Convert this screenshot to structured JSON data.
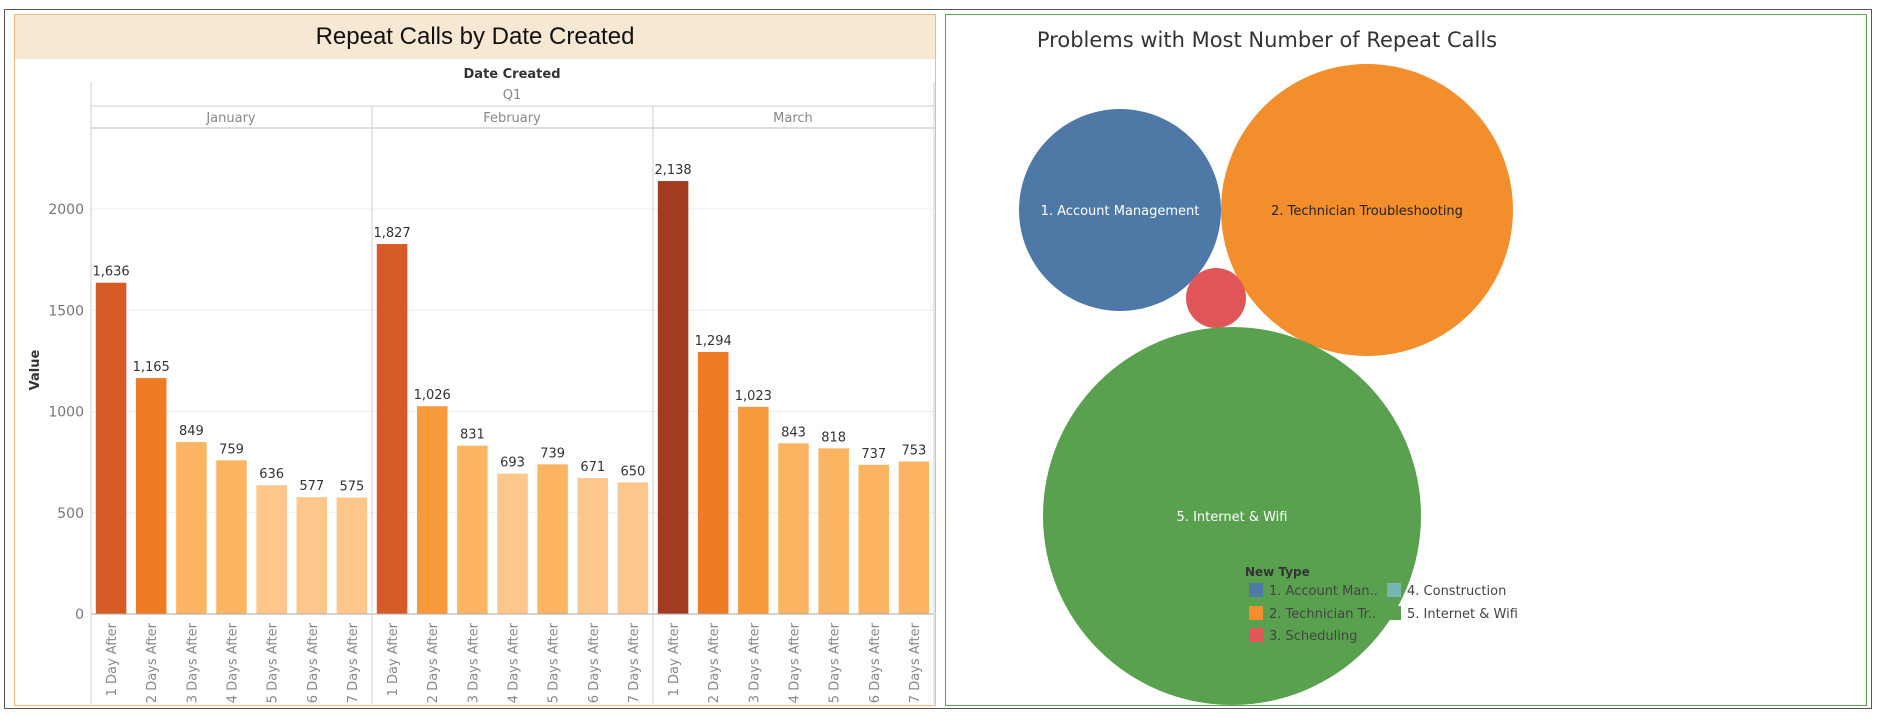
{
  "left": {
    "title": "Repeat Calls by Date Created",
    "column_header": "Date Created",
    "quarter": "Q1",
    "months": [
      "January",
      "February",
      "March"
    ]
  },
  "right": {
    "title": "Problems with Most Number of Repeat Calls"
  },
  "chart_data": [
    {
      "type": "bar",
      "title": "Repeat Calls by Date Created",
      "ylabel": "Value",
      "xlabel": "",
      "ylim": [
        0,
        2400
      ],
      "yticks": [
        0,
        500,
        1000,
        1500,
        2000
      ],
      "grid": true,
      "categories": [
        "1 Day After",
        "2 Days After",
        "3 Days After",
        "4 Days After",
        "5 Days After",
        "6 Days After",
        "7 Days After"
      ],
      "groups": [
        {
          "name": "January",
          "values": [
            1636,
            1165,
            849,
            759,
            636,
            577,
            575
          ]
        },
        {
          "name": "February",
          "values": [
            1827,
            1026,
            831,
            693,
            739,
            671,
            650
          ]
        },
        {
          "name": "March",
          "values": [
            2138,
            1294,
            1023,
            843,
            818,
            737,
            753
          ]
        }
      ],
      "value_labels": {
        "January": [
          "1,636",
          "1,165",
          "849",
          "759",
          "636",
          "577",
          "575"
        ],
        "February": [
          "1,827",
          "1,026",
          "831",
          "693",
          "739",
          "671",
          "650"
        ],
        "March": [
          "2,138",
          "1,294",
          "1,023",
          "843",
          "818",
          "737",
          "753"
        ]
      },
      "color_scale": [
        "#fdc68a",
        "#fbb562",
        "#f89a3c",
        "#f07b25",
        "#d75b24",
        "#a33b20"
      ],
      "color_thresholds": [
        700,
        900,
        1100,
        1400,
        2000
      ]
    },
    {
      "type": "bubble",
      "title": "Problems with Most Number of Repeat Calls",
      "legend_title": "New Type",
      "legend_position": "bottom-center",
      "bubbles": [
        {
          "name": "1. Account Management",
          "legend_label": "1. Account Man..",
          "color": "#4e79a7",
          "label_color": "#ffffff"
        },
        {
          "name": "2. Technician Troubleshooting",
          "legend_label": "2. Technician Tr..",
          "color": "#f28e2b",
          "label_color": "#222222"
        },
        {
          "name": "3. Scheduling",
          "legend_label": "3. Scheduling",
          "color": "#e15759",
          "label_color": "#ffffff"
        },
        {
          "name": "4. Construction",
          "legend_label": "4. Construction",
          "color": "#76b7b2",
          "label_color": "#ffffff"
        },
        {
          "name": "5. Internet & Wifi",
          "legend_label": "5. Internet & Wifi",
          "color": "#59a14f",
          "label_color": "#ffffff"
        }
      ]
    }
  ]
}
